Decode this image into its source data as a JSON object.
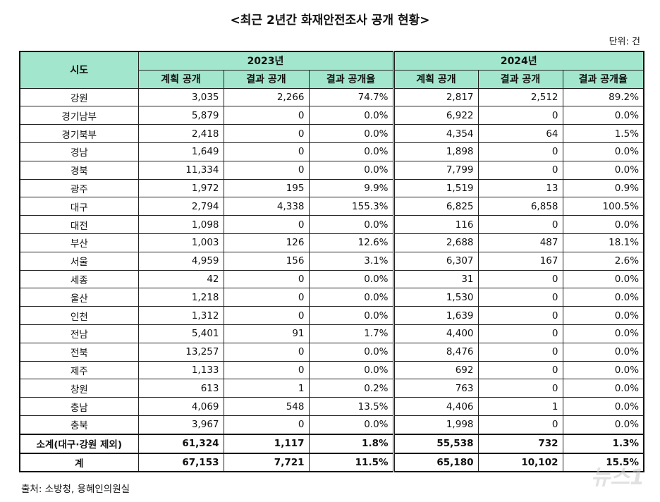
{
  "title": "<최근 2년간 화재안전조사 공개 현황>",
  "unit": "단위: 건",
  "header": {
    "region": "시도",
    "years": [
      "2023년",
      "2024년"
    ],
    "subcolumns": [
      "계획 공개",
      "결과 공개",
      "결과 공개율"
    ]
  },
  "rows": [
    [
      "강원",
      "3,035",
      "2,266",
      "74.7%",
      "2,817",
      "2,512",
      "89.2%"
    ],
    [
      "경기남부",
      "5,879",
      "0",
      "0.0%",
      "6,922",
      "0",
      "0.0%"
    ],
    [
      "경기북부",
      "2,418",
      "0",
      "0.0%",
      "4,354",
      "64",
      "1.5%"
    ],
    [
      "경남",
      "1,649",
      "0",
      "0.0%",
      "1,898",
      "0",
      "0.0%"
    ],
    [
      "경북",
      "11,334",
      "0",
      "0.0%",
      "7,799",
      "0",
      "0.0%"
    ],
    [
      "광주",
      "1,972",
      "195",
      "9.9%",
      "1,519",
      "13",
      "0.9%"
    ],
    [
      "대구",
      "2,794",
      "4,338",
      "155.3%",
      "6,825",
      "6,858",
      "100.5%"
    ],
    [
      "대전",
      "1,098",
      "0",
      "0.0%",
      "116",
      "0",
      "0.0%"
    ],
    [
      "부산",
      "1,003",
      "126",
      "12.6%",
      "2,688",
      "487",
      "18.1%"
    ],
    [
      "서울",
      "4,959",
      "156",
      "3.1%",
      "6,307",
      "167",
      "2.6%"
    ],
    [
      "세종",
      "42",
      "0",
      "0.0%",
      "31",
      "0",
      "0.0%"
    ],
    [
      "울산",
      "1,218",
      "0",
      "0.0%",
      "1,530",
      "0",
      "0.0%"
    ],
    [
      "인천",
      "1,312",
      "0",
      "0.0%",
      "1,639",
      "0",
      "0.0%"
    ],
    [
      "전남",
      "5,401",
      "91",
      "1.7%",
      "4,400",
      "0",
      "0.0%"
    ],
    [
      "전북",
      "13,257",
      "0",
      "0.0%",
      "8,476",
      "0",
      "0.0%"
    ],
    [
      "제주",
      "1,133",
      "0",
      "0.0%",
      "692",
      "0",
      "0.0%"
    ],
    [
      "창원",
      "613",
      "1",
      "0.2%",
      "763",
      "0",
      "0.0%"
    ],
    [
      "충남",
      "4,069",
      "548",
      "13.5%",
      "4,406",
      "1",
      "0.0%"
    ],
    [
      "충북",
      "3,967",
      "0",
      "0.0%",
      "1,998",
      "0",
      "0.0%"
    ]
  ],
  "subtotal": [
    "소계(대구·강원 제외)",
    "61,324",
    "1,117",
    "1.8%",
    "55,538",
    "732",
    "1.3%"
  ],
  "total": [
    "계",
    "67,153",
    "7,721",
    "11.5%",
    "65,180",
    "10,102",
    "15.5%"
  ],
  "source": "출처: 소방청, 용혜인의원실",
  "watermark": "뉴스1",
  "colors": {
    "header_bg": "#a2e6cd"
  }
}
